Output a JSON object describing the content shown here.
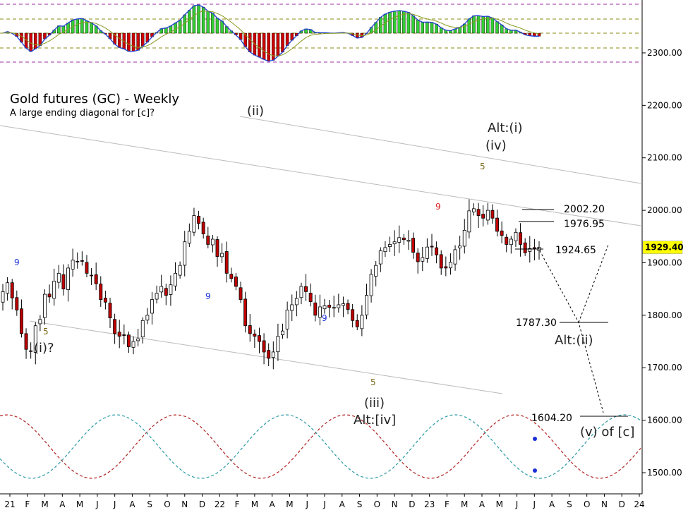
{
  "chart_data": {
    "type": "candlestick",
    "title": "Gold futures (GC) - Weekly",
    "subtitle": "A large ending diagonal for [c]?",
    "last_price": 1929.4,
    "y_axis": {
      "ticks": [
        1500,
        1600,
        1700,
        1800,
        1900,
        2000,
        2100,
        2200,
        2300
      ],
      "tick_labels": [
        "1500.00",
        "1600.00",
        "1700.00",
        "1800.00",
        "1900.00",
        "2000.00",
        "2100.00",
        "2200.00",
        "2300.00"
      ]
    },
    "x_axis": {
      "tick_labels": [
        "21",
        "F",
        "M",
        "A",
        "M",
        "J",
        "J",
        "A",
        "S",
        "O",
        "N",
        "D",
        "22",
        "F",
        "M",
        "A",
        "M",
        "J",
        "J",
        "A",
        "S",
        "O",
        "N",
        "D",
        "23",
        "F",
        "M",
        "A",
        "M",
        "J",
        "J",
        "A",
        "S",
        "O",
        "N",
        "D",
        "24"
      ]
    },
    "closes": [
      1845,
      1862,
      1833,
      1810,
      1765,
      1735,
      1732,
      1780,
      1792,
      1840,
      1835,
      1865,
      1880,
      1850,
      1890,
      1905,
      1902,
      1903,
      1880,
      1876,
      1860,
      1830,
      1825,
      1795,
      1765,
      1760,
      1762,
      1740,
      1750,
      1755,
      1790,
      1800,
      1830,
      1842,
      1855,
      1838,
      1858,
      1880,
      1895,
      1940,
      1960,
      1990,
      1975,
      1955,
      1935,
      1945,
      1912,
      1918,
      1880,
      1870,
      1855,
      1830,
      1780,
      1765,
      1760,
      1750,
      1730,
      1718,
      1730,
      1760,
      1770,
      1810,
      1820,
      1832,
      1855,
      1845,
      1826,
      1800,
      1816,
      1818,
      1815,
      1815,
      1820,
      1822,
      1811,
      1790,
      1778,
      1800,
      1838,
      1878,
      1895,
      1923,
      1929,
      1935,
      1940,
      1948,
      1944,
      1943,
      1920,
      1902,
      1910,
      1930,
      1930,
      1915,
      1890,
      1890,
      1901,
      1925,
      1932,
      1962,
      1999,
      2003,
      1990,
      1985,
      2000,
      1985,
      1960,
      1952,
      1935,
      1945,
      1958,
      1935,
      1919,
      1927,
      1927,
      1929.4
    ],
    "levels": [
      {
        "label": "2002.20",
        "value": 2002.2
      },
      {
        "label": "1976.95",
        "value": 1976.95
      },
      {
        "label": "1924.65",
        "value": 1924.65
      },
      {
        "label": "1787.30",
        "value": 1787.3
      },
      {
        "label": "1604.20",
        "value": 1604.2
      }
    ],
    "wave_labels": [
      "(i)?",
      "(ii)",
      "(iii)",
      "Alt:[iv]",
      "Alt:(i)",
      "(iv)",
      "Alt:(ii)",
      "(v) of [c]"
    ],
    "count_labels": [
      {
        "text": "9",
        "color": "#1a2fd6"
      },
      {
        "text": "5",
        "color": "#7a6a16"
      },
      {
        "text": "9",
        "color": "#1a2fd6"
      },
      {
        "text": "9",
        "color": "#1a2fd6"
      },
      {
        "text": "5",
        "color": "#7a6a16"
      },
      {
        "text": "9",
        "color": "#d62020"
      },
      {
        "text": "5",
        "color": "#7a6a16"
      }
    ],
    "colors": {
      "up_candle": "#ffffff",
      "down_candle": "#c00000",
      "oscillator_up": "#33cc33",
      "oscillator_down": "#cc0000",
      "oscillator_line": "#1f3fd0",
      "cycle_red": "#b02020",
      "cycle_teal": "#2a9aa6",
      "channel": "#bbbbbb",
      "price_tag": "#ffff00"
    }
  }
}
